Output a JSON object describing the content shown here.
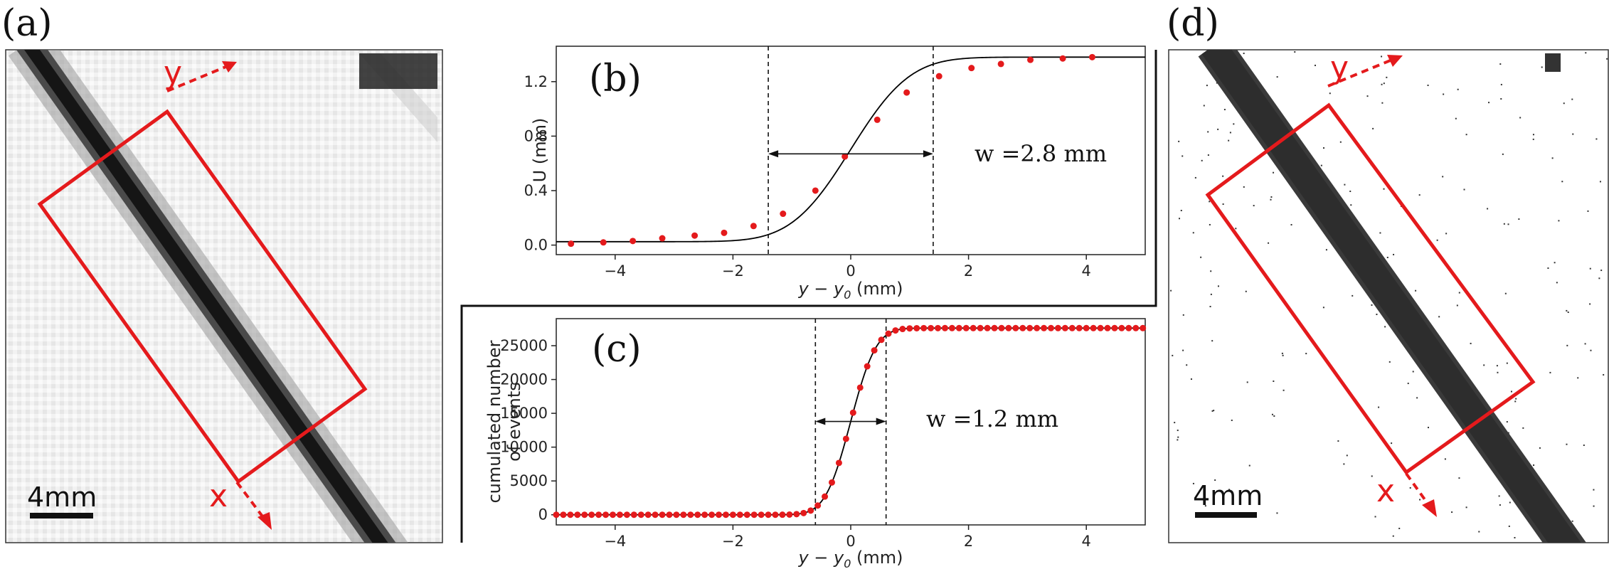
{
  "panels": {
    "a": {
      "letter": "(a)",
      "scalebar_label": "4mm",
      "arrow_y_label": "y",
      "arrow_x_label": "x"
    },
    "d": {
      "letter": "(d)",
      "scalebar_label": "4mm",
      "arrow_y_label": "y",
      "arrow_x_label": "x"
    }
  },
  "colors": {
    "marker": "#e41a1c",
    "frame": "#e41a1c",
    "line": "#000000"
  },
  "chart_data": [
    {
      "id": "b",
      "type": "scatter",
      "panel_letter": "(b)",
      "xlabel": "y − y",
      "xlabel_sub": "0",
      "xlabel_unit": " (mm)",
      "ylabel": "U (mm)",
      "xlim": [
        -5,
        5
      ],
      "ylim": [
        -0.07,
        1.46
      ],
      "xticks": [
        -4,
        -2,
        0,
        2,
        4
      ],
      "yticks": [
        0.0,
        0.4,
        0.8,
        1.2
      ],
      "ytick_labels": [
        "0.0",
        "0.4",
        "0.8",
        "1.2"
      ],
      "xtick_labels": [
        "−4",
        "−2",
        "0",
        "2",
        "4"
      ],
      "series": [
        {
          "name": "data",
          "x": [
            -4.75,
            -4.2,
            -3.7,
            -3.2,
            -2.65,
            -2.15,
            -1.65,
            -1.15,
            -0.6,
            -0.1,
            0.45,
            0.95,
            1.5,
            2.05,
            2.55,
            3.05,
            3.6,
            4.1
          ],
          "y": [
            0.01,
            0.02,
            0.03,
            0.05,
            0.07,
            0.09,
            0.14,
            0.23,
            0.4,
            0.65,
            0.92,
            1.12,
            1.24,
            1.3,
            1.33,
            1.36,
            1.37,
            1.38
          ]
        }
      ],
      "fit": {
        "model": "erf",
        "baseline": 0.025,
        "amplitude": 1.355,
        "center": 0.0,
        "width": 2.8
      },
      "vlines": [
        -1.4,
        1.4
      ],
      "annotation": {
        "text": "w =2.8 mm",
        "arrow_from": -1.4,
        "arrow_to": 1.4,
        "arrow_y": 0.67
      }
    },
    {
      "id": "c",
      "type": "scatter",
      "panel_letter": "(c)",
      "xlabel": "y − y",
      "xlabel_sub": "0",
      "xlabel_unit": " (mm)",
      "ylabel_lines": [
        "cumulated number",
        "of events"
      ],
      "xlim": [
        -5,
        5
      ],
      "ylim": [
        -1500,
        29000
      ],
      "xticks": [
        -4,
        -2,
        0,
        2,
        4
      ],
      "yticks": [
        0,
        5000,
        10000,
        15000,
        20000,
        25000
      ],
      "ytick_labels": [
        "0",
        "5000",
        "10000",
        "15000",
        "20000",
        "25000"
      ],
      "xtick_labels": [
        "−4",
        "−2",
        "0",
        "2",
        "4"
      ],
      "series": [
        {
          "name": "data",
          "x_start": -5.0,
          "x_step": 0.12,
          "count": 84
        }
      ],
      "fit": {
        "model": "erf",
        "baseline": 0,
        "amplitude": 27600,
        "center": 0.0,
        "width": 1.2
      },
      "vlines": [
        -0.6,
        0.6
      ],
      "annotation": {
        "text": "w =1.2 mm",
        "arrow_from": -0.6,
        "arrow_to": 0.6,
        "arrow_y": 13800
      }
    }
  ]
}
